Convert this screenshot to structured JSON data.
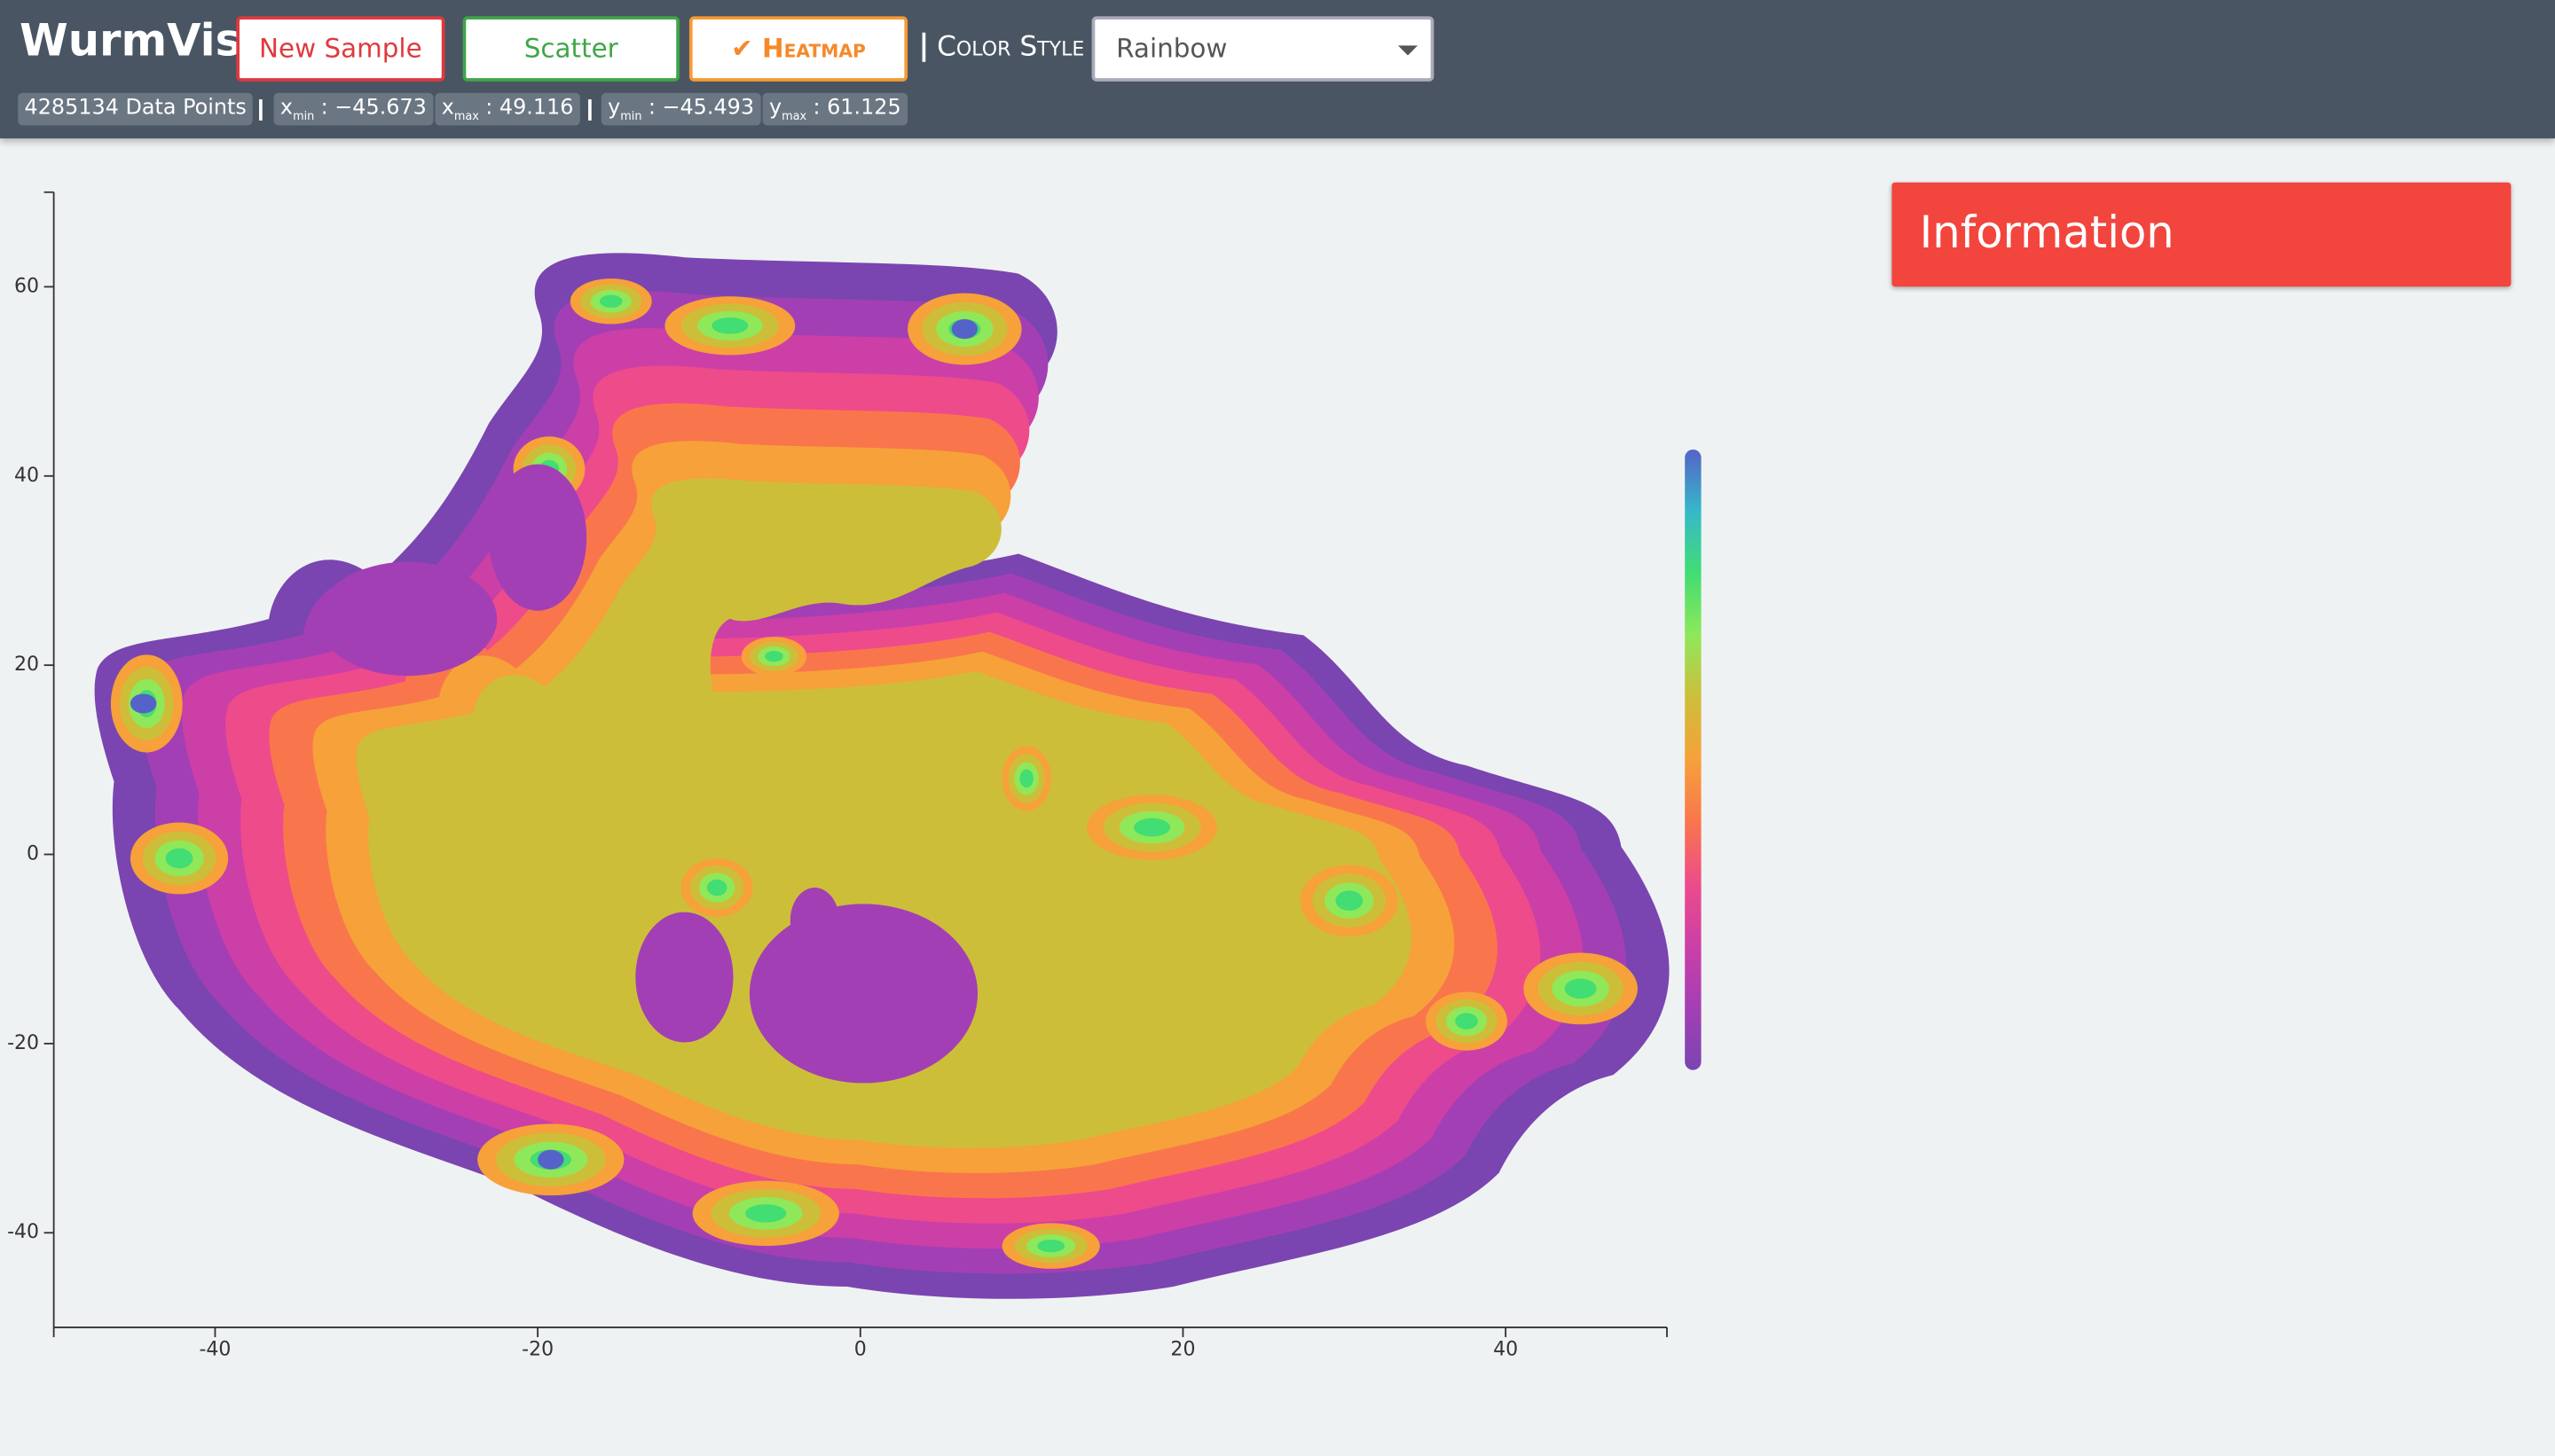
{
  "header": {
    "title": "WurmVis",
    "buttons": [
      "New Sample",
      "Scatter",
      "✔ Heatmap"
    ],
    "color_style_label": "Color Style",
    "color_style_value": "Rainbow",
    "data_points": "4285134 Data Points",
    "stats": [
      {
        "name": "x",
        "sub": "min",
        "value": ": −45.673"
      },
      {
        "name": "x",
        "sub": "max",
        "value": ": 49.116"
      },
      {
        "name": "y",
        "sub": "min",
        "value": ": −45.493"
      },
      {
        "name": "y",
        "sub": "max",
        "value": ": 61.125"
      }
    ]
  },
  "info": {
    "title": "Information"
  },
  "chart_data": {
    "type": "heatmap",
    "xlim": [
      -50,
      50
    ],
    "ylim": [
      -50,
      70
    ],
    "xticks": [
      -40,
      -20,
      0,
      20,
      40
    ],
    "yticks": [
      -40,
      -20,
      0,
      20,
      40,
      60
    ],
    "colormap": [
      "#7a45b0",
      "#a33fb4",
      "#cc3fa6",
      "#ee4b8b",
      "#f9764c",
      "#f6a13a",
      "#cdbe3a",
      "#8fe85a",
      "#42dd73",
      "#35b9c9",
      "#5563c8"
    ]
  }
}
